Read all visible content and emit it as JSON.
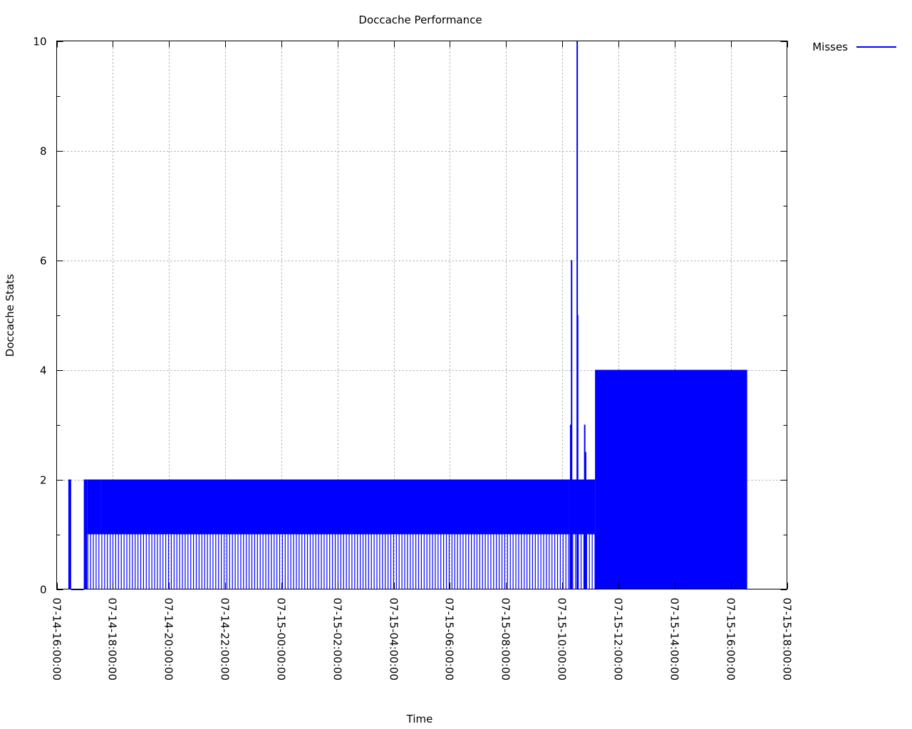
{
  "chart_data": {
    "type": "area",
    "title": "Doccache Performance",
    "xlabel": "Time",
    "ylabel": "Doccache Stats",
    "ylim": [
      0,
      10
    ],
    "yticks": [
      "0",
      "2",
      "4",
      "6",
      "8",
      "10"
    ],
    "xlim": [
      "07-14-16:00:00",
      "07-15-18:00:00"
    ],
    "xticks": [
      "07-14-16:00:00",
      "07-14-18:00:00",
      "07-14-20:00:00",
      "07-14-22:00:00",
      "07-15-00:00:00",
      "07-15-02:00:00",
      "07-15-04:00:00",
      "07-15-06:00:00",
      "07-15-08:00:00",
      "07-15-10:00:00",
      "07-15-12:00:00",
      "07-15-14:00:00",
      "07-15-16:00:00",
      "07-15-18:00:00"
    ],
    "grid": true,
    "legend_position": "top-right outside",
    "series": [
      {
        "name": "Misses",
        "color": "#0000ff",
        "segments": [
          {
            "from": "07-14-16:25:00",
            "to": "07-14-16:31:00",
            "low": 0,
            "high": 2
          },
          {
            "from": "07-14-16:31:00",
            "to": "07-14-16:58:00",
            "low": 0,
            "high": 0
          },
          {
            "from": "07-14-16:58:00",
            "to": "07-14-17:05:00",
            "low": 0,
            "high": 2
          },
          {
            "from": "07-14-17:05:00",
            "to": "07-14-17:35:00",
            "low": 1,
            "high": 2
          },
          {
            "from": "07-14-17:35:00",
            "to": "07-15-10:15:00",
            "low": 1,
            "high": 2
          },
          {
            "from": "07-15-10:15:00",
            "to": "07-15-11:10:00",
            "low": 1,
            "high": 2
          },
          {
            "from": "07-15-11:10:00",
            "to": "07-15-16:35:00",
            "low": 0,
            "high": 4
          }
        ],
        "spikes": [
          {
            "x": "07-15-10:18:00",
            "y": 3
          },
          {
            "x": "07-15-10:20:00",
            "y": 6
          },
          {
            "x": "07-15-10:32:00",
            "y": 10
          },
          {
            "x": "07-15-10:33:00",
            "y": 5
          },
          {
            "x": "07-15-10:48:00",
            "y": 3
          },
          {
            "x": "07-15-10:50:00",
            "y": 2.5
          }
        ]
      }
    ]
  }
}
